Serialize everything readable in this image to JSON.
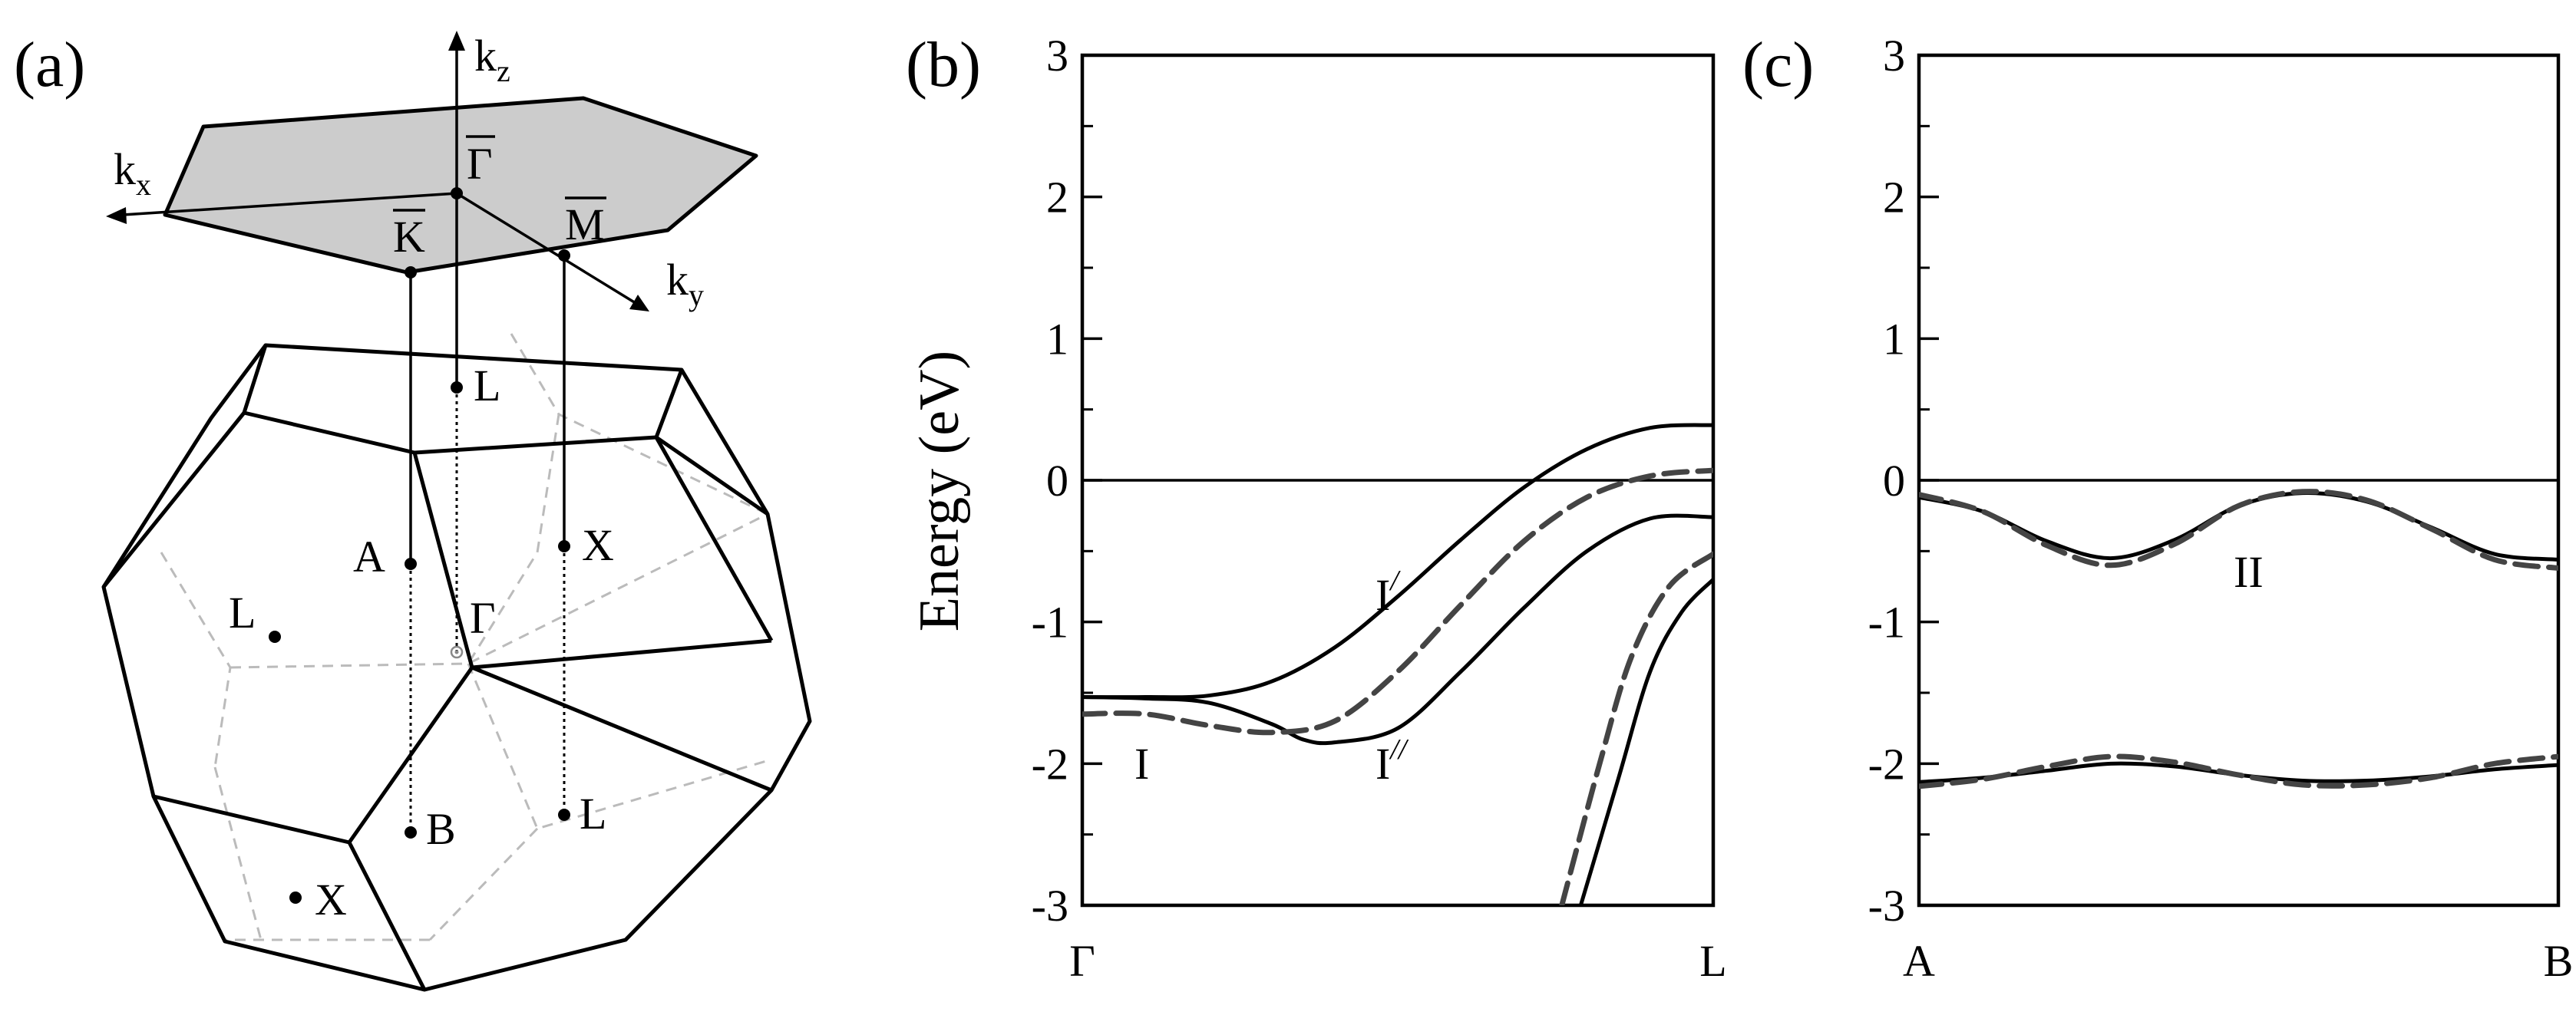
{
  "panel_a": {
    "label": "(a)",
    "axes": [
      {
        "name": "k",
        "sub": "z"
      },
      {
        "name": "k",
        "sub": "x"
      },
      {
        "name": "k",
        "sub": "y"
      }
    ],
    "surface_points": [
      "Γ",
      "K",
      "M"
    ],
    "bulk_points": [
      "L",
      "A",
      "X",
      "L",
      "Γ",
      "B",
      "L",
      "X"
    ]
  },
  "chart_data": [
    {
      "type": "line",
      "panel": "(b)",
      "title": "",
      "xlabel": "",
      "ylabel": "Energy (eV)",
      "ylim": [
        -3,
        3
      ],
      "yticks": [
        "3",
        "2",
        "1",
        "0",
        "-1",
        "-2",
        "-3"
      ],
      "xtick_labels": [
        "Γ",
        "L"
      ],
      "reference_line_y": 0,
      "grid": false,
      "band_labels": [
        {
          "base": "I",
          "prime": ""
        },
        {
          "base": "I",
          "prime": "/"
        },
        {
          "base": "I",
          "prime": "//"
        }
      ],
      "series": [
        {
          "style": "solid",
          "x": [
            0,
            0.1,
            0.2,
            0.3,
            0.35,
            0.4,
            0.5,
            0.6,
            0.7,
            0.8,
            0.9,
            1.0
          ],
          "y": [
            -1.53,
            -1.54,
            -1.57,
            -1.72,
            -1.83,
            -1.85,
            -1.75,
            -1.35,
            -0.9,
            -0.5,
            -0.27,
            -0.26
          ]
        },
        {
          "style": "solid",
          "x": [
            0,
            0.1,
            0.2,
            0.3,
            0.4,
            0.5,
            0.6,
            0.7,
            0.8,
            0.9,
            1.0
          ],
          "y": [
            -1.53,
            -1.53,
            -1.52,
            -1.42,
            -1.18,
            -0.82,
            -0.42,
            -0.05,
            0.22,
            0.37,
            0.39
          ]
        },
        {
          "style": "dashed",
          "x": [
            0,
            0.1,
            0.2,
            0.3,
            0.4,
            0.5,
            0.6,
            0.7,
            0.8,
            0.9,
            1.0
          ],
          "y": [
            -1.65,
            -1.65,
            -1.73,
            -1.78,
            -1.7,
            -1.35,
            -0.88,
            -0.43,
            -0.12,
            0.03,
            0.07
          ]
        },
        {
          "style": "solid",
          "x": [
            0.79,
            0.85,
            0.9,
            0.95,
            1.0
          ],
          "y": [
            -3.0,
            -2.1,
            -1.35,
            -0.93,
            -0.7
          ]
        },
        {
          "style": "dashed",
          "x": [
            0.76,
            0.82,
            0.87,
            0.93,
            1.0
          ],
          "y": [
            -3.0,
            -2.0,
            -1.25,
            -0.75,
            -0.52
          ]
        }
      ]
    },
    {
      "type": "line",
      "panel": "(c)",
      "title": "",
      "xlabel": "",
      "ylabel": "",
      "ylim": [
        -3,
        3
      ],
      "yticks": [
        "3",
        "2",
        "1",
        "0",
        "-1",
        "-2",
        "-3"
      ],
      "xtick_labels": [
        "A",
        "B"
      ],
      "reference_line_y": 0,
      "grid": false,
      "band_labels": [
        {
          "base": "II",
          "prime": ""
        }
      ],
      "series": [
        {
          "style": "solid",
          "x": [
            0,
            0.1,
            0.2,
            0.3,
            0.4,
            0.5,
            0.6,
            0.7,
            0.8,
            0.9,
            1.0
          ],
          "y": [
            -0.12,
            -0.22,
            -0.43,
            -0.55,
            -0.42,
            -0.18,
            -0.09,
            -0.15,
            -0.33,
            -0.52,
            -0.56
          ]
        },
        {
          "style": "dashed",
          "x": [
            0,
            0.1,
            0.2,
            0.3,
            0.4,
            0.5,
            0.6,
            0.7,
            0.8,
            0.9,
            1.0
          ],
          "y": [
            -0.1,
            -0.22,
            -0.46,
            -0.6,
            -0.45,
            -0.18,
            -0.08,
            -0.14,
            -0.34,
            -0.56,
            -0.62
          ]
        },
        {
          "style": "solid",
          "x": [
            0,
            0.1,
            0.2,
            0.3,
            0.4,
            0.5,
            0.6,
            0.7,
            0.8,
            0.9,
            1.0
          ],
          "y": [
            -2.13,
            -2.1,
            -2.05,
            -2.0,
            -2.02,
            -2.08,
            -2.12,
            -2.12,
            -2.09,
            -2.04,
            -2.01
          ]
        },
        {
          "style": "dashed",
          "x": [
            0,
            0.1,
            0.2,
            0.3,
            0.4,
            0.5,
            0.6,
            0.7,
            0.8,
            0.9,
            1.0
          ],
          "y": [
            -2.16,
            -2.11,
            -2.02,
            -1.95,
            -1.99,
            -2.08,
            -2.15,
            -2.15,
            -2.1,
            -2.0,
            -1.95
          ]
        }
      ]
    }
  ],
  "panel_b_label": "(b)",
  "panel_c_label": "(c)"
}
